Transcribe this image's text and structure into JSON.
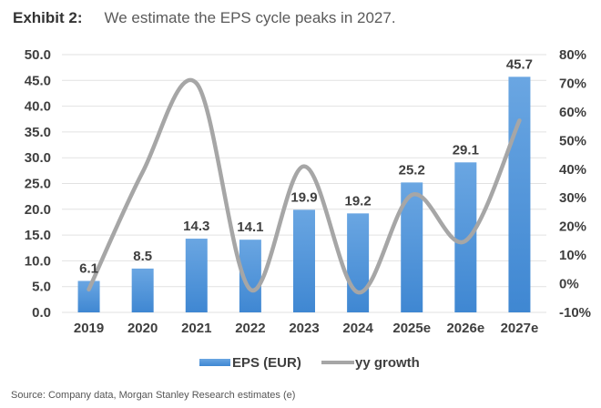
{
  "header": {
    "exhibit_label": "Exhibit 2:",
    "title": "We estimate the EPS cycle peaks in 2027."
  },
  "footer": {
    "source": "Source: Company data, Morgan Stanley Research estimates (e)"
  },
  "colors": {
    "bar": "#4a8fd6",
    "bar_light": "#69a5e3",
    "line": "#a6a6a6",
    "grid": "#e2e2e2",
    "text": "#3f3f3f"
  },
  "chart_data": {
    "type": "bar",
    "title": "We estimate the EPS cycle peaks in 2027.",
    "categories": [
      "2019",
      "2020",
      "2021",
      "2022",
      "2023",
      "2024",
      "2025e",
      "2026e",
      "2027e"
    ],
    "series": [
      {
        "name": "EPS (EUR)",
        "type": "bar",
        "axis": "left",
        "values": [
          6.1,
          8.5,
          14.3,
          14.1,
          19.9,
          19.2,
          25.2,
          29.1,
          45.7
        ],
        "data_labels": [
          "6.1",
          "8.5",
          "14.3",
          "14.1",
          "19.9",
          "19.2",
          "25.2",
          "29.1",
          "45.7"
        ]
      },
      {
        "name": "yy growth",
        "type": "line",
        "smooth": true,
        "axis": "right",
        "values": [
          -2,
          39,
          70,
          -2,
          41,
          -3,
          31,
          15,
          57
        ],
        "unit": "%"
      }
    ],
    "left_axis": {
      "range": [
        0,
        50
      ],
      "step": 5,
      "ticks": [
        "0.0",
        "5.0",
        "10.0",
        "15.0",
        "20.0",
        "25.0",
        "30.0",
        "35.0",
        "40.0",
        "45.0",
        "50.0"
      ]
    },
    "right_axis": {
      "range": [
        -10,
        80
      ],
      "step": 10,
      "ticks": [
        "-10%",
        "0%",
        "10%",
        "20%",
        "30%",
        "40%",
        "50%",
        "60%",
        "70%",
        "80%"
      ]
    },
    "xlabel": "",
    "ylabel": "",
    "grid": true,
    "legend": {
      "position": "bottom",
      "entries": [
        "EPS (EUR)",
        "yy growth"
      ]
    }
  }
}
